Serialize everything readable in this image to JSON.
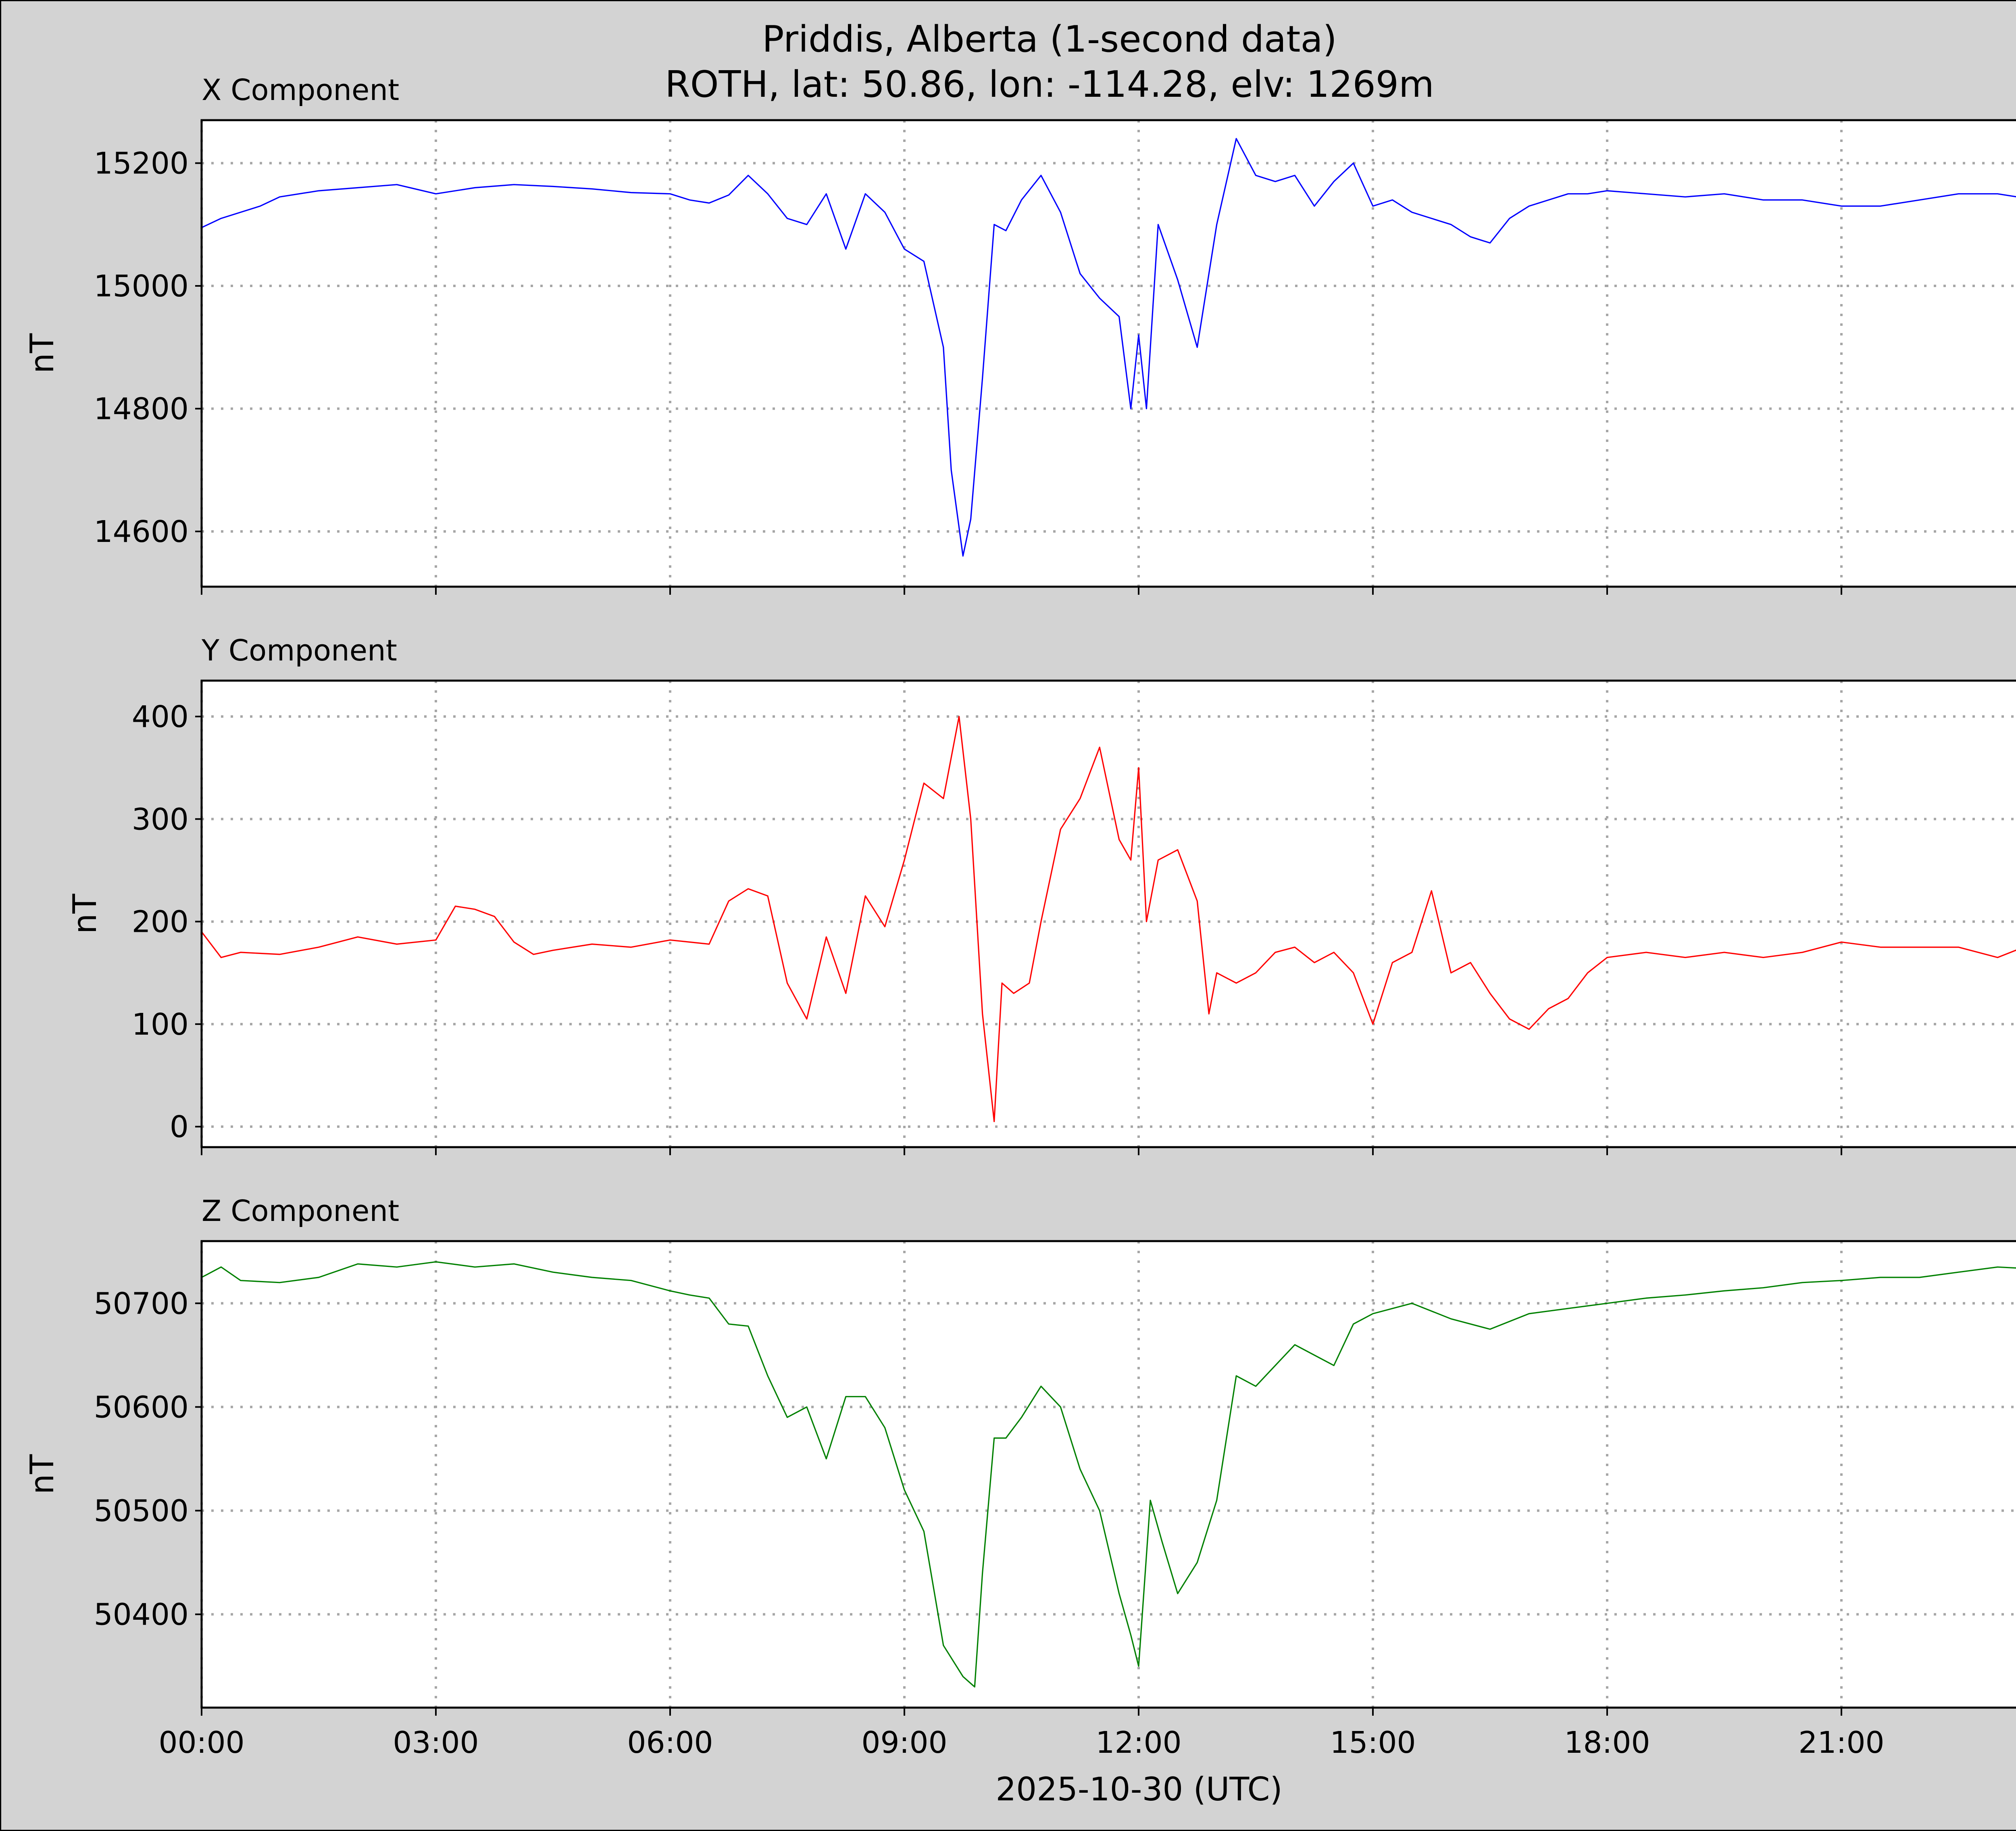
{
  "chart_data": {
    "type": "line",
    "title": "Priddis, Alberta (1-second data)",
    "subtitle": "ROTH, lat: 50.86, lon: -114.28, elv: 1269m",
    "xlabel": "2025-10-30 (UTC)",
    "x_unit": "hours",
    "x_ticks": [
      0,
      3,
      6,
      9,
      12,
      15,
      18,
      21
    ],
    "x_tick_labels": [
      "00:00",
      "03:00",
      "06:00",
      "09:00",
      "12:00",
      "15:00",
      "18:00",
      "21:00"
    ],
    "xlim": [
      0,
      24
    ],
    "grid": true,
    "panels": [
      {
        "title": "X Component",
        "ylabel": "nT",
        "color": "#0000ff",
        "ylim": [
          14510,
          15270
        ],
        "y_ticks": [
          14600,
          14800,
          15000,
          15200
        ],
        "x": [
          0,
          0.25,
          0.5,
          0.75,
          1.0,
          1.5,
          2.0,
          2.5,
          3.0,
          3.5,
          4.0,
          4.5,
          5.0,
          5.5,
          6.0,
          6.25,
          6.5,
          6.75,
          7.0,
          7.25,
          7.5,
          7.75,
          8.0,
          8.25,
          8.5,
          8.75,
          9.0,
          9.25,
          9.5,
          9.6,
          9.75,
          9.85,
          10.0,
          10.15,
          10.3,
          10.5,
          10.75,
          11.0,
          11.25,
          11.5,
          11.75,
          11.9,
          12.0,
          12.1,
          12.25,
          12.5,
          12.75,
          13.0,
          13.25,
          13.5,
          13.75,
          14.0,
          14.25,
          14.5,
          14.75,
          15.0,
          15.25,
          15.5,
          15.75,
          16.0,
          16.25,
          16.5,
          16.75,
          17.0,
          17.25,
          17.5,
          17.75,
          18.0,
          18.5,
          19.0,
          19.5,
          20.0,
          20.5,
          21.0,
          21.5,
          22.0,
          22.5,
          23.0,
          23.5,
          24.0
        ],
        "y": [
          15095,
          15110,
          15120,
          15130,
          15145,
          15155,
          15160,
          15165,
          15150,
          15160,
          15165,
          15162,
          15158,
          15152,
          15150,
          15140,
          15135,
          15148,
          15180,
          15150,
          15110,
          15100,
          15150,
          15060,
          15150,
          15120,
          15060,
          15040,
          14900,
          14700,
          14560,
          14620,
          14850,
          15100,
          15090,
          15140,
          15180,
          15120,
          15020,
          14980,
          14950,
          14800,
          14920,
          14800,
          15100,
          15010,
          14900,
          15100,
          15240,
          15180,
          15170,
          15180,
          15130,
          15170,
          15200,
          15130,
          15140,
          15120,
          15110,
          15100,
          15080,
          15070,
          15110,
          15130,
          15140,
          15150,
          15150,
          15155,
          15150,
          15145,
          15150,
          15140,
          15140,
          15130,
          15130,
          15140,
          15150,
          15150,
          15140,
          15145
        ]
      },
      {
        "title": "Y Component",
        "ylabel": "nT",
        "color": "#ff0000",
        "ylim": [
          -20,
          435
        ],
        "y_ticks": [
          0,
          100,
          200,
          300,
          400
        ],
        "x": [
          0,
          0.25,
          0.5,
          1.0,
          1.5,
          2.0,
          2.5,
          3.0,
          3.25,
          3.5,
          3.75,
          4.0,
          4.25,
          4.5,
          5.0,
          5.5,
          6.0,
          6.25,
          6.5,
          6.75,
          7.0,
          7.25,
          7.5,
          7.75,
          8.0,
          8.25,
          8.5,
          8.75,
          9.0,
          9.25,
          9.5,
          9.7,
          9.85,
          10.0,
          10.15,
          10.25,
          10.4,
          10.6,
          10.75,
          11.0,
          11.25,
          11.5,
          11.75,
          11.9,
          12.0,
          12.1,
          12.25,
          12.5,
          12.75,
          12.9,
          13.0,
          13.25,
          13.5,
          13.75,
          14.0,
          14.25,
          14.5,
          14.75,
          15.0,
          15.25,
          15.5,
          15.75,
          16.0,
          16.25,
          16.5,
          16.75,
          17.0,
          17.25,
          17.5,
          17.75,
          18.0,
          18.5,
          19.0,
          19.5,
          20.0,
          20.5,
          21.0,
          21.5,
          22.0,
          22.5,
          23.0,
          23.5,
          24.0
        ],
        "y": [
          190,
          165,
          170,
          168,
          175,
          185,
          178,
          182,
          215,
          212,
          205,
          180,
          168,
          172,
          178,
          175,
          182,
          180,
          178,
          220,
          232,
          225,
          140,
          105,
          185,
          130,
          225,
          195,
          260,
          335,
          320,
          400,
          300,
          110,
          5,
          140,
          130,
          140,
          200,
          290,
          320,
          370,
          280,
          260,
          350,
          200,
          260,
          270,
          220,
          110,
          150,
          140,
          150,
          170,
          175,
          160,
          170,
          150,
          100,
          160,
          170,
          230,
          150,
          160,
          130,
          105,
          95,
          115,
          125,
          150,
          165,
          170,
          165,
          170,
          165,
          170,
          180,
          175,
          175,
          175,
          165,
          180,
          175
        ]
      },
      {
        "title": "Z Component",
        "ylabel": "nT",
        "color": "#008000",
        "ylim": [
          50310,
          50760
        ],
        "y_ticks": [
          50400,
          50500,
          50600,
          50700
        ],
        "x": [
          0,
          0.25,
          0.5,
          1.0,
          1.5,
          2.0,
          2.5,
          3.0,
          3.5,
          4.0,
          4.5,
          5.0,
          5.5,
          6.0,
          6.25,
          6.5,
          6.75,
          7.0,
          7.25,
          7.5,
          7.75,
          8.0,
          8.25,
          8.5,
          8.75,
          9.0,
          9.25,
          9.5,
          9.75,
          9.9,
          10.0,
          10.15,
          10.3,
          10.5,
          10.75,
          11.0,
          11.25,
          11.5,
          11.75,
          11.9,
          12.0,
          12.15,
          12.3,
          12.5,
          12.75,
          13.0,
          13.25,
          13.5,
          13.75,
          14.0,
          14.25,
          14.5,
          14.75,
          15.0,
          15.5,
          16.0,
          16.5,
          17.0,
          17.5,
          18.0,
          18.5,
          19.0,
          19.5,
          20.0,
          20.5,
          21.0,
          21.5,
          22.0,
          22.5,
          23.0,
          23.5,
          24.0
        ],
        "y": [
          50725,
          50735,
          50722,
          50720,
          50725,
          50738,
          50735,
          50740,
          50735,
          50738,
          50730,
          50725,
          50722,
          50712,
          50708,
          50705,
          50680,
          50678,
          50630,
          50590,
          50600,
          50550,
          50610,
          50610,
          50580,
          50520,
          50480,
          50370,
          50340,
          50330,
          50440,
          50570,
          50570,
          50590,
          50620,
          50600,
          50540,
          50500,
          50420,
          50380,
          50350,
          50510,
          50470,
          50420,
          50450,
          50510,
          50630,
          50620,
          50640,
          50660,
          50650,
          50640,
          50680,
          50690,
          50700,
          50685,
          50675,
          50690,
          50695,
          50700,
          50705,
          50708,
          50712,
          50715,
          50720,
          50722,
          50725,
          50725,
          50730,
          50735,
          50733,
          50730
        ]
      }
    ]
  }
}
